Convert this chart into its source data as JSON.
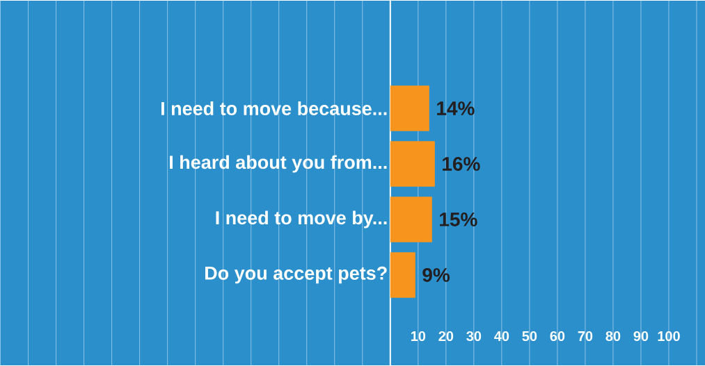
{
  "chart_data": {
    "type": "bar",
    "orientation": "horizontal",
    "categories": [
      "I need to move because...",
      "I heard about you from...",
      "I need to move by...",
      "Do you accept pets?"
    ],
    "values": [
      14,
      16,
      15,
      9
    ],
    "value_labels": [
      "14%",
      "16%",
      "15%",
      "9%"
    ],
    "color": "#f7941d",
    "xlim": [
      0,
      113
    ],
    "xticks": [
      10,
      20,
      30,
      40,
      50,
      60,
      70,
      80,
      90,
      100
    ],
    "grid": true
  }
}
